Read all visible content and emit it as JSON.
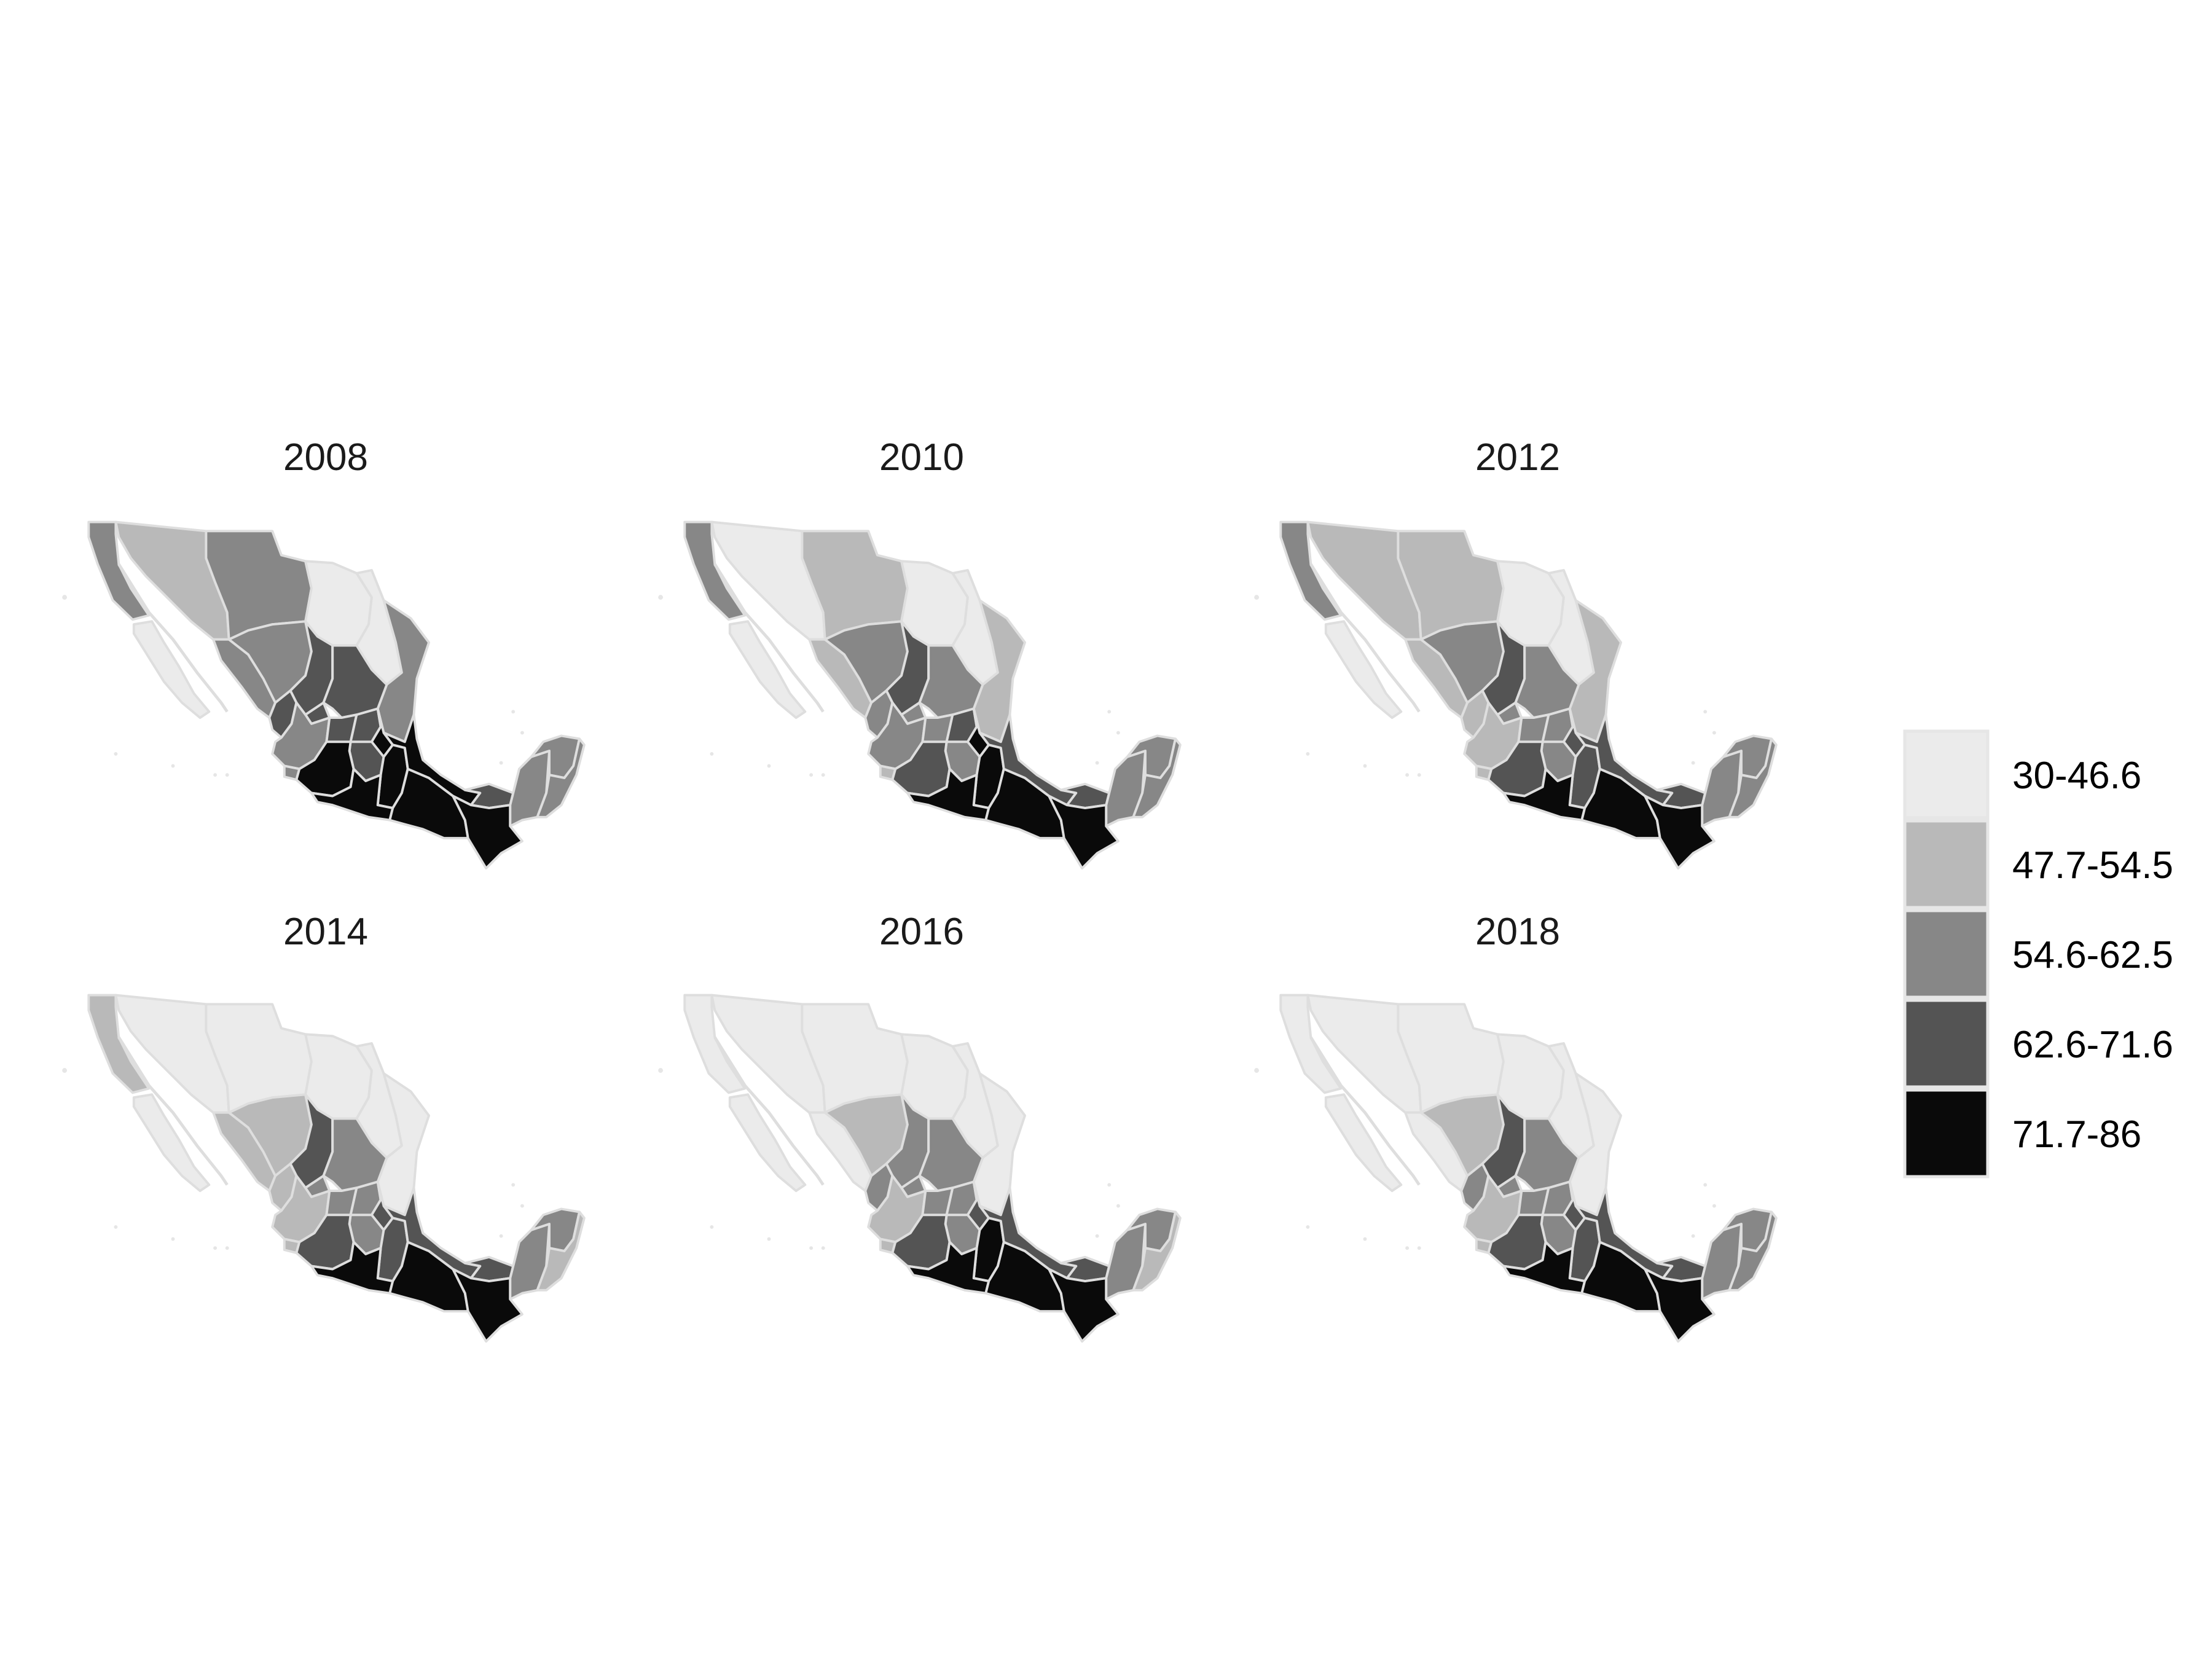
{
  "chart_data": {
    "type": "choropleth-small-multiples",
    "panels": [
      {
        "title": "2008",
        "fills": {
          "bc": 3,
          "bcs": 1,
          "son": 2,
          "chih": 3,
          "coah": 1,
          "nl": 1,
          "tamps": 3,
          "sin": 3,
          "dgo": 3,
          "zac": 4,
          "slp": 4,
          "nay": 4,
          "jal": 3,
          "col": 3,
          "ags": 4,
          "gto": 4,
          "qro": 4,
          "hgo": 5,
          "mich": 5,
          "mex": 4,
          "gro": 5,
          "pue": 5,
          "ver": 5,
          "oax": 5,
          "tab": 4,
          "chis": 5,
          "camp": 3,
          "yuc": 3,
          "qroo": 3
        }
      },
      {
        "title": "2010",
        "fills": {
          "bc": 3,
          "bcs": 1,
          "son": 1,
          "chih": 2,
          "coah": 1,
          "nl": 1,
          "tamps": 2,
          "sin": 2,
          "dgo": 3,
          "zac": 4,
          "slp": 3,
          "nay": 3,
          "jal": 3,
          "col": 2,
          "ags": 3,
          "gto": 3,
          "qro": 4,
          "hgo": 5,
          "mich": 4,
          "mex": 3,
          "gro": 5,
          "pue": 5,
          "ver": 4,
          "oax": 5,
          "tab": 4,
          "chis": 5,
          "camp": 3,
          "yuc": 3,
          "qroo": 3
        }
      },
      {
        "title": "2012",
        "fills": {
          "bc": 3,
          "bcs": 1,
          "son": 2,
          "chih": 2,
          "coah": 1,
          "nl": 1,
          "tamps": 2,
          "sin": 2,
          "dgo": 3,
          "zac": 4,
          "slp": 3,
          "nay": 2,
          "jal": 2,
          "col": 2,
          "ags": 3,
          "gto": 3,
          "qro": 3,
          "hgo": 4,
          "mich": 4,
          "mex": 3,
          "gro": 5,
          "pue": 4,
          "ver": 4,
          "oax": 5,
          "tab": 4,
          "chis": 5,
          "camp": 3,
          "yuc": 3,
          "qroo": 3
        }
      },
      {
        "title": "2014",
        "fills": {
          "bc": 2,
          "bcs": 1,
          "son": 1,
          "chih": 1,
          "coah": 1,
          "nl": 1,
          "tamps": 1,
          "sin": 2,
          "dgo": 2,
          "zac": 4,
          "slp": 3,
          "nay": 2,
          "jal": 2,
          "col": 2,
          "ags": 3,
          "gto": 3,
          "qro": 3,
          "hgo": 4,
          "mich": 4,
          "mex": 3,
          "gro": 5,
          "pue": 4,
          "ver": 4,
          "oax": 5,
          "tab": 4,
          "chis": 5,
          "camp": 3,
          "yuc": 3,
          "qroo": 2
        }
      },
      {
        "title": "2016",
        "fills": {
          "bc": 1,
          "bcs": 1,
          "son": 1,
          "chih": 1,
          "coah": 1,
          "nl": 1,
          "tamps": 1,
          "sin": 1,
          "dgo": 2,
          "zac": 3,
          "slp": 3,
          "nay": 3,
          "jal": 2,
          "col": 2,
          "ags": 3,
          "gto": 3,
          "qro": 3,
          "hgo": 4,
          "mich": 4,
          "mex": 3,
          "gro": 5,
          "pue": 5,
          "ver": 4,
          "oax": 5,
          "tab": 4,
          "chis": 5,
          "camp": 3,
          "yuc": 3,
          "qroo": 2
        }
      },
      {
        "title": "2018",
        "fills": {
          "bc": 1,
          "bcs": 1,
          "son": 1,
          "chih": 1,
          "coah": 1,
          "nl": 1,
          "tamps": 1,
          "sin": 1,
          "dgo": 2,
          "zac": 4,
          "slp": 3,
          "nay": 3,
          "jal": 2,
          "col": 2,
          "ags": 3,
          "gto": 3,
          "qro": 3,
          "hgo": 4,
          "mich": 4,
          "mex": 3,
          "gro": 5,
          "pue": 4,
          "ver": 4,
          "oax": 5,
          "tab": 4,
          "chis": 5,
          "camp": 3,
          "yuc": 3,
          "qroo": 3
        }
      }
    ],
    "legend": {
      "placement": "right",
      "classes": [
        {
          "label": "30-46.6",
          "color": "#ebebeb"
        },
        {
          "label": "47.7-54.5",
          "color": "#b9b9b9"
        },
        {
          "label": "54.6-62.5",
          "color": "#878787"
        },
        {
          "label": "62.6-71.6",
          "color": "#545454"
        },
        {
          "label": "71.7-86",
          "color": "#0a0a0a"
        }
      ]
    },
    "border_color": "#dedede"
  }
}
